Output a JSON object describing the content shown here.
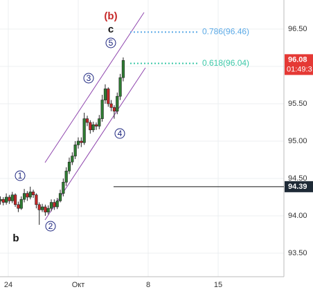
{
  "chart_data": {
    "type": "candlestick",
    "xlim": [
      -7.83,
      20.58
    ],
    "ylim": [
      93.185,
      96.889
    ],
    "xticks": [
      {
        "value": -7,
        "label": "24"
      },
      {
        "value": 0,
        "label": "Окт"
      },
      {
        "value": 7,
        "label": "8"
      },
      {
        "value": 14,
        "label": "15"
      }
    ],
    "yticks": [
      {
        "value": 93.5,
        "label": "93.50"
      },
      {
        "value": 94,
        "label": "94.00"
      },
      {
        "value": 94.5,
        "label": "94.50"
      },
      {
        "value": 95,
        "label": "95.00"
      },
      {
        "value": 95.5,
        "label": "95.50"
      },
      {
        "value": 96,
        "label": "96.00"
      },
      {
        "value": 96.5,
        "label": "96.50"
      }
    ],
    "grid": true,
    "up_color": "#2e7d32",
    "down_color": "#c62828",
    "x": [
      -7.8,
      -7.5,
      -7.2,
      -6.9,
      -6.6,
      -6.3,
      -6,
      -5.7,
      -5.4,
      -5.1,
      -4.8,
      -4.5,
      -4.2,
      -3.9,
      -3.6,
      -3.3,
      -3,
      -2.7,
      -2.4,
      -2.1,
      -1.8,
      -1.5,
      -1.2,
      -0.9,
      -0.6,
      -0.3,
      0,
      0.3,
      0.6,
      0.9,
      1.2,
      1.5,
      1.8,
      2.1,
      2.4,
      2.7,
      3,
      3.3,
      3.6,
      3.9,
      4.2,
      4.5
    ],
    "open": [
      94.2,
      94.22,
      94.18,
      94.25,
      94.2,
      94.28,
      94.15,
      94.1,
      94.22,
      94.3,
      94.25,
      94.32,
      94.28,
      94.15,
      94.08,
      94.12,
      94.05,
      94.1,
      94.18,
      94.12,
      94.2,
      94.3,
      94.45,
      94.6,
      94.72,
      94.8,
      94.95,
      95.0,
      94.98,
      95.3,
      95.25,
      95.15,
      95.22,
      95.2,
      95.3,
      95.55,
      95.7,
      95.5,
      95.45,
      95.4,
      95.6,
      95.85
    ],
    "high": [
      94.26,
      94.25,
      94.3,
      94.28,
      94.32,
      94.3,
      94.19,
      94.26,
      94.36,
      94.33,
      94.39,
      94.35,
      94.3,
      94.18,
      94.16,
      94.15,
      94.14,
      94.22,
      94.22,
      94.24,
      94.35,
      94.5,
      94.65,
      94.78,
      94.85,
      95.0,
      95.05,
      95.05,
      95.38,
      95.34,
      95.28,
      95.26,
      95.25,
      95.35,
      95.62,
      95.76,
      95.72,
      95.55,
      95.48,
      95.65,
      95.9,
      96.12
    ],
    "low": [
      94.15,
      94.14,
      94.15,
      94.16,
      94.17,
      94.12,
      94.05,
      94.08,
      94.18,
      94.2,
      94.22,
      94.24,
      94.1,
      93.88,
      94.05,
      94.0,
      94.02,
      94.06,
      94.08,
      94.09,
      94.18,
      94.26,
      94.4,
      94.56,
      94.68,
      94.76,
      94.9,
      94.92,
      94.95,
      95.2,
      95.1,
      95.12,
      95.15,
      95.16,
      95.26,
      95.5,
      95.46,
      95.4,
      95.3,
      95.36,
      95.55,
      95.8
    ],
    "close": [
      94.22,
      94.18,
      94.25,
      94.2,
      94.28,
      94.15,
      94.1,
      94.22,
      94.3,
      94.25,
      94.32,
      94.28,
      94.15,
      94.08,
      94.12,
      94.05,
      94.1,
      94.18,
      94.12,
      94.2,
      94.3,
      94.45,
      94.6,
      94.72,
      94.8,
      94.95,
      95.0,
      94.98,
      95.3,
      95.25,
      95.15,
      95.22,
      95.2,
      95.3,
      95.55,
      95.7,
      95.5,
      95.45,
      95.4,
      95.6,
      95.85,
      96.08
    ],
    "fib_levels": [
      {
        "label": "0.786(96.46)",
        "value": 96.46,
        "color": "#5aa9e6"
      },
      {
        "label": "0.618(96.04)",
        "value": 96.04,
        "color": "#3cc8a8"
      }
    ],
    "horizontal_line": 94.39,
    "last_price": 96.08,
    "countdown": "01:49:3",
    "wave_labels": {
      "major_b": "(b)",
      "c": "c",
      "b": "b",
      "w1": "1",
      "w2": "2",
      "w3": "3",
      "w4": "4",
      "w5": "5"
    }
  }
}
